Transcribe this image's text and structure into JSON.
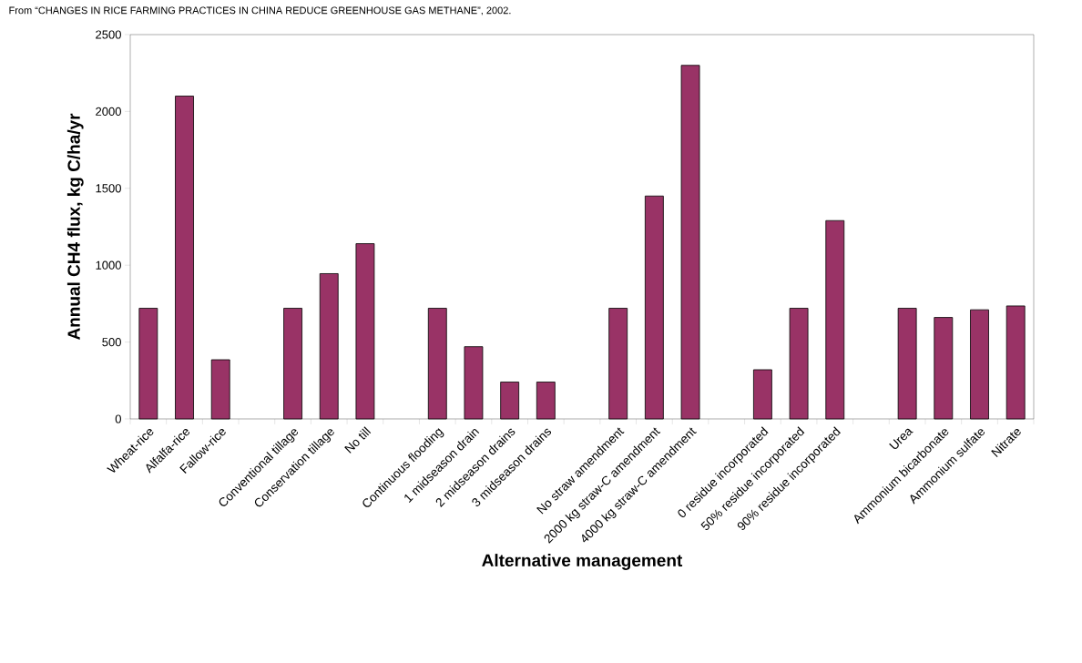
{
  "chart_data": {
    "type": "bar",
    "annotations": [
      "From “CHANGES IN RICE FARMING PRACTICES IN CHINA REDUCE GREENHOUSE GAS METHANE”, 2002."
    ],
    "xlabel": "Alternative management",
    "ylabel": "Annual CH4 flux, kg C/ha/yr",
    "categories": [
      "Wheat-rice",
      "Alfalfa-rice",
      "Fallow-rice",
      null,
      "Conventional tillage",
      "Conservation tillage",
      "No till",
      null,
      "Continuous flooding",
      "1 midseason drain",
      "2 midseason drains",
      "3 midseason drains",
      null,
      "No straw amendment",
      "2000 kg straw-C amendment",
      "4000 kg straw-C amendment",
      null,
      "0 residue incorporated",
      "50% residue incorporated",
      "90% residue incorporated",
      null,
      "Urea",
      "Ammonium bicarbonate",
      "Ammonium sulfate",
      "Nitrate"
    ],
    "values": [
      720,
      2100,
      385,
      null,
      720,
      945,
      1140,
      null,
      720,
      470,
      240,
      240,
      null,
      720,
      1450,
      2300,
      null,
      320,
      720,
      1290,
      null,
      720,
      660,
      710,
      735
    ],
    "color": "#993366",
    "ylim": [
      0,
      2500
    ],
    "yticks": [
      0,
      500,
      1000,
      1500,
      2000,
      2500
    ]
  }
}
